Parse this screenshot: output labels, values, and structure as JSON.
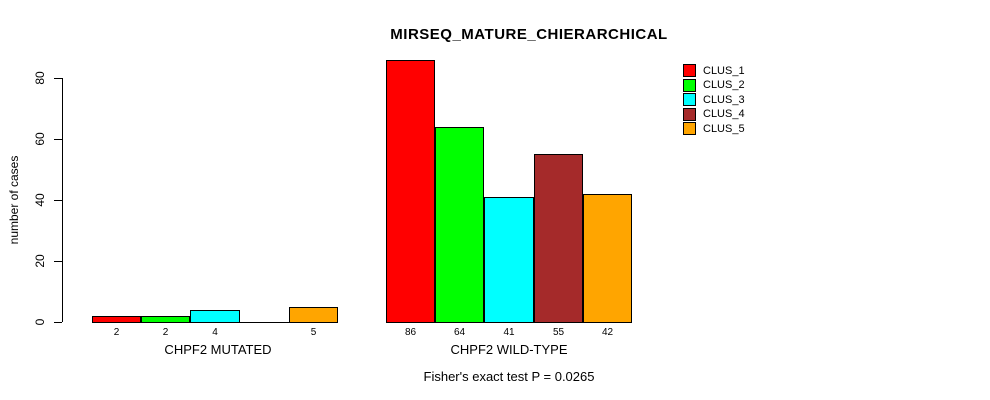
{
  "figure": {
    "title": "MIRSEQ_MATURE_CHIERARCHICAL",
    "footnote": "Fisher's exact test P = 0.0265"
  },
  "chart_data": {
    "type": "bar",
    "title": "MIRSEQ_MATURE_CHIERARCHICAL",
    "xlabel": "",
    "ylabel": "number of cases",
    "ylim": [
      0,
      80
    ],
    "yticks": [
      0,
      20,
      40,
      60,
      80
    ],
    "grid": false,
    "legend_position": "top-right",
    "categories": [
      "CHPF2 MUTATED",
      "CHPF2 WILD-TYPE"
    ],
    "series": [
      {
        "name": "CLUS_1",
        "color": "#FF0000",
        "values": [
          2,
          86
        ]
      },
      {
        "name": "CLUS_2",
        "color": "#00FF00",
        "values": [
          2,
          64
        ]
      },
      {
        "name": "CLUS_3",
        "color": "#00FFFF",
        "values": [
          4,
          41
        ]
      },
      {
        "name": "CLUS_4",
        "color": "#A52A2A",
        "values": [
          0,
          55
        ]
      },
      {
        "name": "CLUS_5",
        "color": "#FFA500",
        "values": [
          5,
          42
        ]
      }
    ],
    "bar_value_labels": {
      "CHPF2 MUTATED": [
        "2",
        "2",
        "4",
        "",
        "5"
      ],
      "CHPF2 WILD-TYPE": [
        "86",
        "64",
        "41",
        "55",
        "42"
      ]
    },
    "annotation": "Fisher's exact test P = 0.0265"
  },
  "colors": {
    "background": "#FFFFFF",
    "axis": "#000000",
    "text": "#000000"
  }
}
